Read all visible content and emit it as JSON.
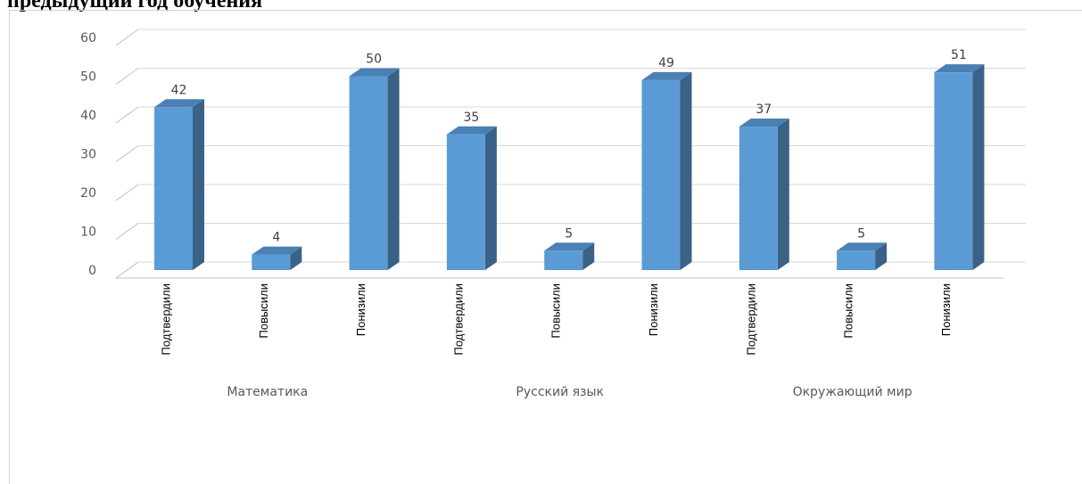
{
  "heading": "предыдущий год обучения",
  "chart_data": {
    "type": "bar",
    "style": "3d-column",
    "ylim": [
      0,
      60
    ],
    "yticks": [
      0,
      10,
      20,
      30,
      40,
      50,
      60
    ],
    "grid": true,
    "legend": "none",
    "groups": [
      {
        "name": "Математика",
        "categories": [
          "Подтвердили",
          "Повысили",
          "Понизили"
        ],
        "values": [
          42,
          4,
          50
        ]
      },
      {
        "name": "Русский язык",
        "categories": [
          "Подтвердили",
          "Повысили",
          "Понизили"
        ],
        "values": [
          35,
          5,
          49
        ]
      },
      {
        "name": "Окружающий мир",
        "categories": [
          "Подтвердили",
          "Повысили",
          "Понизили"
        ],
        "values": [
          37,
          5,
          51
        ]
      }
    ],
    "colors": {
      "front": "#5B9BD5",
      "side": "#3A6287",
      "top": "#4A80B4",
      "grid": "#d9d9d9",
      "axis": "#bfbfbf"
    }
  }
}
